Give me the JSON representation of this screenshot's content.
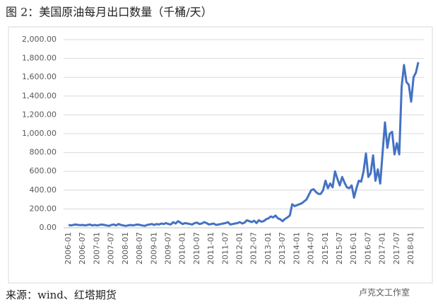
{
  "chart_data": {
    "type": "line",
    "title": "图 2：美国原油每月出口数量（千桶/天）",
    "source": "来源：wind、红塔期货",
    "watermark": "卢克文工作室",
    "color": "#4472c4",
    "grid": true,
    "ylim": [
      0,
      2000
    ],
    "yticks": [
      {
        "value": 0,
        "label": "0.00"
      },
      {
        "value": 200,
        "label": "200.00"
      },
      {
        "value": 400,
        "label": "400.00"
      },
      {
        "value": 600,
        "label": "600.00"
      },
      {
        "value": 800,
        "label": "800.00"
      },
      {
        "value": 1000,
        "label": "1,000.00"
      },
      {
        "value": 1200,
        "label": "1,200.00"
      },
      {
        "value": 1400,
        "label": "1,400.00"
      },
      {
        "value": 1600,
        "label": "1,600.00"
      },
      {
        "value": 1800,
        "label": "1,800.00"
      },
      {
        "value": 2000,
        "label": "2,000.00"
      }
    ],
    "categories": [
      "2006-01",
      null,
      null,
      null,
      null,
      null,
      "2006-07",
      null,
      null,
      null,
      null,
      null,
      "2007-01",
      null,
      null,
      null,
      null,
      null,
      "2007-07",
      null,
      null,
      null,
      null,
      null,
      "2008-01",
      null,
      null,
      null,
      null,
      null,
      "2008-07",
      null,
      null,
      null,
      null,
      null,
      "2009-01",
      null,
      null,
      null,
      null,
      null,
      "2009-07",
      null,
      null,
      null,
      null,
      null,
      "2010-01",
      null,
      null,
      null,
      null,
      null,
      "2010-07",
      null,
      null,
      null,
      null,
      null,
      "2011-01",
      null,
      null,
      null,
      null,
      null,
      "2011-07",
      null,
      null,
      null,
      null,
      null,
      "2012-01",
      null,
      null,
      null,
      null,
      null,
      "2012-07",
      null,
      null,
      null,
      null,
      null,
      "2013-01",
      null,
      null,
      null,
      null,
      null,
      "2013-07",
      null,
      null,
      null,
      null,
      null,
      "2014-01",
      null,
      null,
      null,
      null,
      null,
      "2014-07",
      null,
      null,
      null,
      null,
      null,
      "2015-01",
      null,
      null,
      null,
      null,
      null,
      "2015-07",
      null,
      null,
      null,
      null,
      null,
      "2016-01",
      null,
      null,
      null,
      null,
      null,
      "2016-07",
      null,
      null,
      null,
      null,
      null,
      "2017-01",
      null,
      null,
      null,
      null,
      null,
      "2017-07",
      null,
      null,
      null,
      null,
      null,
      "2018-01",
      null,
      null,
      null
    ],
    "values": [
      30,
      25,
      30,
      35,
      30,
      28,
      30,
      25,
      30,
      35,
      25,
      30,
      25,
      30,
      35,
      30,
      25,
      20,
      30,
      35,
      25,
      40,
      30,
      25,
      20,
      25,
      30,
      25,
      30,
      35,
      30,
      25,
      20,
      30,
      35,
      40,
      30,
      40,
      35,
      45,
      40,
      50,
      40,
      35,
      60,
      45,
      70,
      55,
      40,
      50,
      45,
      40,
      35,
      50,
      55,
      40,
      45,
      60,
      50,
      35,
      40,
      45,
      30,
      35,
      40,
      45,
      50,
      60,
      35,
      40,
      45,
      50,
      60,
      45,
      55,
      80,
      70,
      60,
      75,
      50,
      80,
      65,
      70,
      90,
      100,
      120,
      110,
      130,
      100,
      90,
      70,
      95,
      110,
      130,
      250,
      230,
      240,
      250,
      260,
      280,
      300,
      350,
      400,
      410,
      380,
      360,
      360,
      400,
      500,
      420,
      470,
      430,
      600,
      520,
      450,
      540,
      480,
      430,
      420,
      450,
      320,
      420,
      500,
      490,
      600,
      790,
      540,
      580,
      770,
      500,
      620,
      470,
      800,
      1120,
      850,
      1000,
      1020,
      780,
      900,
      780,
      1500,
      1730,
      1550,
      1520,
      1340,
      1600,
      1650,
      1760
    ]
  }
}
